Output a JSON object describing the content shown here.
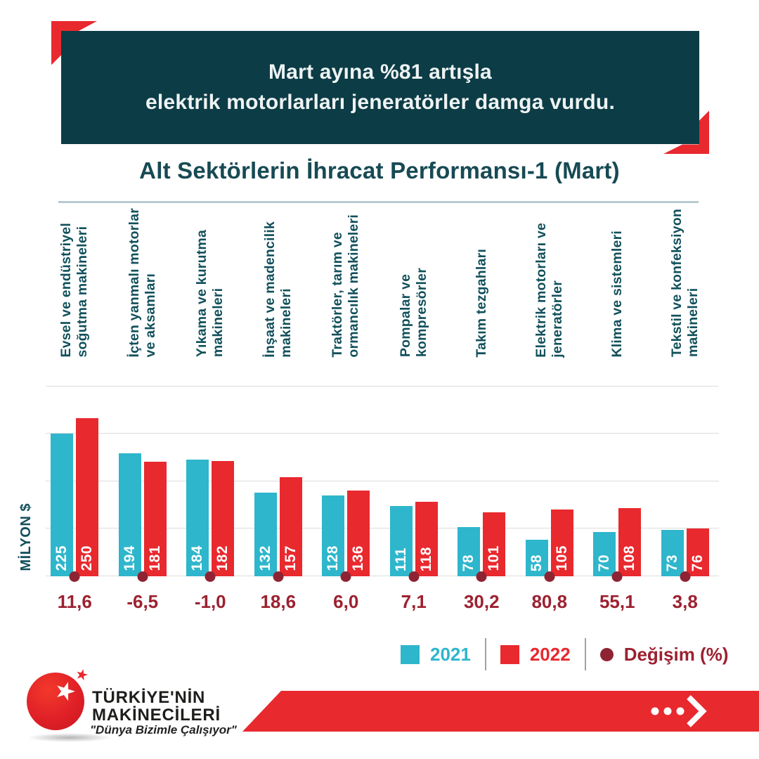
{
  "banner": {
    "line1": "Mart ayına %81 artışla",
    "line2": "elektrik motorlarları jeneratörler damga vurdu."
  },
  "title": "Alt Sektörlerin İhracat Performansı-1 (Mart)",
  "y_axis_label": "MİLYON $",
  "chart_data": {
    "type": "bar",
    "categories": [
      "Evsel ve endüstriyel\nsoğutma makineleri",
      "İçten yanmalı motorlar\nve aksamları",
      "Yıkama ve kurutma\nmakineleri",
      "İnşaat ve madencilik\nmakineleri",
      "Traktörler, tarım ve\normancılık makineleri",
      "Pompalar ve\nkompresörler",
      "Takım tezgahları",
      "Elektrik motorları ve\njeneratörler",
      "Klima ve sistemleri",
      "Tekstil ve konfeksiyon\nmakineleri"
    ],
    "series": [
      {
        "name": "2021",
        "values": [
          225,
          194,
          184,
          132,
          128,
          111,
          78,
          58,
          70,
          73
        ]
      },
      {
        "name": "2022",
        "values": [
          250,
          181,
          182,
          157,
          136,
          118,
          101,
          105,
          108,
          76
        ]
      }
    ],
    "change_percent": [
      "11,6",
      "-6,5",
      "-1,0",
      "18,6",
      "6,0",
      "7,1",
      "30,2",
      "80,8",
      "55,1",
      "3,8"
    ],
    "ylabel": "MİLYON $",
    "ylim": [
      0,
      300
    ],
    "gridlines": [
      0,
      75,
      150,
      225,
      300
    ],
    "grid": true,
    "legend_position": "bottom-right",
    "colors": {
      "series_2021": "#2eb6cc",
      "series_2022": "#e8292e",
      "change_dot": "#8e2433",
      "change_text": "#9c2130",
      "gridline": "#dcdcda"
    }
  },
  "legend": [
    {
      "label": "2021",
      "color": "#2eb6cc",
      "shape": "square"
    },
    {
      "label": "2022",
      "color": "#e8292e",
      "shape": "square"
    },
    {
      "label": "Değişim (%)",
      "color": "#8e2433",
      "shape": "circle"
    }
  ],
  "logo": {
    "line1": "TÜRKİYE'NİN",
    "line2": "MAKİNECİLERİ",
    "slogan": "\"Dünya Bizimle Çalışıyor\"",
    "star_icon": "★"
  },
  "theme": {
    "banner_bg": "#0c3c46",
    "accent_red": "#e8292e",
    "teal_text": "#174a54"
  }
}
